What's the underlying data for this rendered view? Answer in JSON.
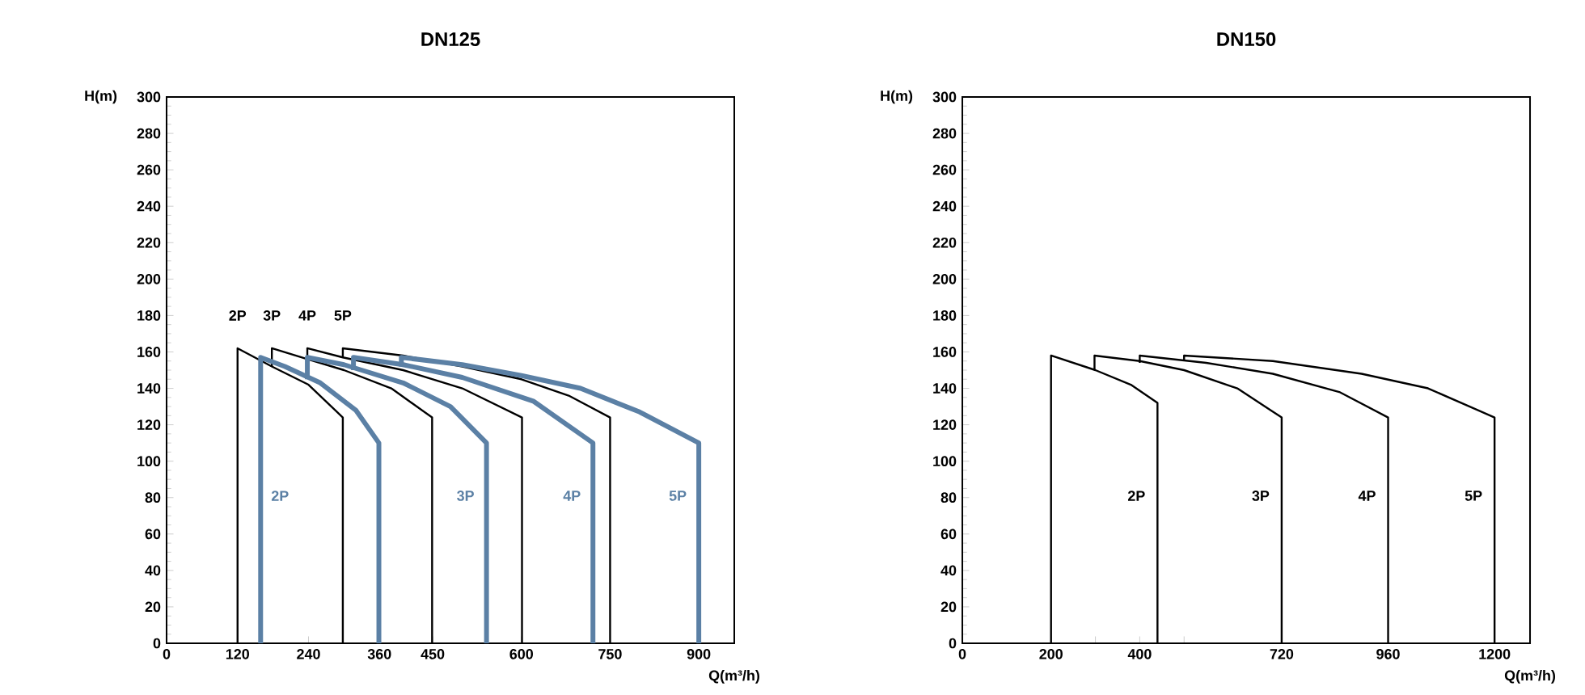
{
  "chart_data": [
    {
      "type": "line",
      "title": "DN125",
      "xlabel": "Q(m³/h)",
      "ylabel": "H(m)",
      "xlim": [
        0,
        960
      ],
      "ylim": [
        0,
        300
      ],
      "xticks": [
        0,
        120,
        240,
        360,
        450,
        600,
        750,
        900
      ],
      "yticks": [
        0,
        20,
        40,
        60,
        80,
        100,
        120,
        140,
        160,
        180,
        200,
        220,
        240,
        260,
        280,
        300
      ],
      "grid": false,
      "marker": "none",
      "line_style": "solid",
      "series": [
        {
          "name": "2P",
          "color": "#000000",
          "x": [
            120,
            120,
            178,
            240,
            298,
            298
          ],
          "values": [
            0,
            162,
            152,
            142,
            124,
            0
          ]
        },
        {
          "name": "3P",
          "color": "#000000",
          "x": [
            178,
            178,
            238,
            300,
            380,
            449,
            449
          ],
          "values": [
            152,
            162,
            156,
            150,
            140,
            124,
            0
          ]
        },
        {
          "name": "4P",
          "color": "#000000",
          "x": [
            238,
            238,
            298,
            400,
            500,
            601,
            601
          ],
          "values": [
            155,
            162,
            157,
            150,
            140,
            124,
            0
          ]
        },
        {
          "name": "5P",
          "color": "#000000",
          "x": [
            298,
            298,
            400,
            500,
            600,
            680,
            750,
            750
          ],
          "values": [
            157,
            162,
            158,
            152,
            145,
            136,
            124,
            0
          ]
        },
        {
          "name": "2P",
          "color": "#5b80a5",
          "x": [
            159,
            159,
            200,
            260,
            320,
            359,
            359
          ],
          "values": [
            0,
            157,
            152,
            143,
            128,
            110,
            0
          ]
        },
        {
          "name": "3P",
          "color": "#5b80a5",
          "x": [
            238,
            238,
            300,
            400,
            480,
            541,
            541
          ],
          "values": [
            145,
            157,
            153,
            143,
            130,
            110,
            0
          ]
        },
        {
          "name": "4P",
          "color": "#5b80a5",
          "x": [
            316,
            316,
            400,
            500,
            620,
            721,
            721
          ],
          "values": [
            150,
            157,
            153,
            146,
            133,
            110,
            0
          ]
        },
        {
          "name": "5P",
          "color": "#5b80a5",
          "x": [
            397,
            397,
            500,
            600,
            700,
            800,
            900,
            900
          ],
          "values": [
            152,
            157,
            153,
            147,
            140,
            127,
            110,
            0
          ]
        }
      ]
    },
    {
      "type": "line",
      "title": "DN150",
      "xlabel": "Q(m³/h)",
      "ylabel": "H(m)",
      "xlim": [
        0,
        1280
      ],
      "ylim": [
        0,
        300
      ],
      "xticks": [
        0,
        200,
        {
          "value": 300,
          "label": null
        },
        400,
        {
          "value": 500,
          "label": null
        },
        720,
        960,
        1200
      ],
      "yticks": [
        0,
        20,
        40,
        60,
        80,
        100,
        120,
        140,
        160,
        180,
        200,
        220,
        240,
        260,
        280,
        300
      ],
      "grid": false,
      "marker": "none",
      "line_style": "solid",
      "series": [
        {
          "name": "2P",
          "color": "#000000",
          "x": [
            200,
            200,
            300,
            380,
            440,
            440
          ],
          "values": [
            0,
            158,
            150,
            142,
            132,
            0
          ]
        },
        {
          "name": "3P",
          "color": "#000000",
          "x": [
            298,
            298,
            400,
            500,
            620,
            720,
            720
          ],
          "values": [
            150,
            158,
            155,
            150,
            140,
            124,
            0
          ]
        },
        {
          "name": "4P",
          "color": "#000000",
          "x": [
            400,
            400,
            550,
            700,
            850,
            960,
            960
          ],
          "values": [
            154,
            158,
            154,
            148,
            138,
            124,
            0
          ]
        },
        {
          "name": "5P",
          "color": "#000000",
          "x": [
            500,
            500,
            700,
            900,
            1050,
            1200,
            1200
          ],
          "values": [
            155,
            158,
            155,
            148,
            140,
            124,
            0
          ]
        }
      ]
    }
  ]
}
